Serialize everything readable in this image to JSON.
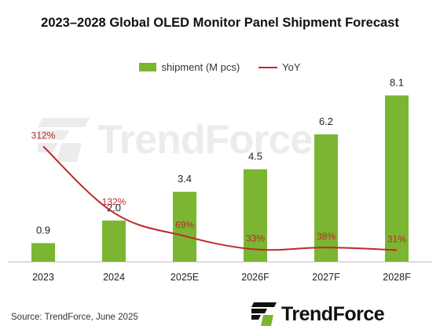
{
  "title": "2023–2028 Global OLED Monitor Panel Shipment Forecast",
  "legend": {
    "bar_label": "shipment (M pcs)",
    "line_label": "YoY"
  },
  "source": "Source: TrendForce, June 2025",
  "logo": {
    "text": "TrendForce",
    "icon": "trendforce-logo-icon"
  },
  "watermark": {
    "text": "TrendForce"
  },
  "colors": {
    "bar": "#7ab631",
    "line": "#c0272d",
    "yoy_label": "#c0272d",
    "value_label": "#222222"
  },
  "chart_data": {
    "type": "bar",
    "categories": [
      "2023",
      "2024",
      "2025E",
      "2026F",
      "2027F",
      "2028F"
    ],
    "series": [
      {
        "name": "shipment (M pcs)",
        "type": "bar",
        "values": [
          0.9,
          2.0,
          3.4,
          4.5,
          6.2,
          8.1
        ],
        "labels": [
          "0.9",
          "2.0",
          "3.4",
          "4.5",
          "6.2",
          "8.1"
        ]
      },
      {
        "name": "YoY",
        "type": "line",
        "values": [
          312,
          132,
          69,
          33,
          38,
          31
        ],
        "labels": [
          "312%",
          "132%",
          "69%",
          "33%",
          "38%",
          "31%"
        ]
      }
    ],
    "ylim": [
      0,
      9
    ],
    "y2lim": [
      0,
      500
    ],
    "grid": false,
    "legend_position": "top-center"
  }
}
